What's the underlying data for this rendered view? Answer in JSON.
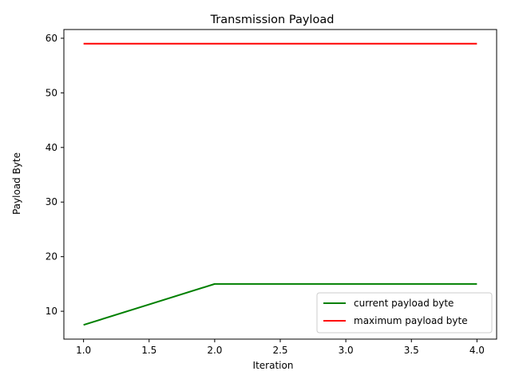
{
  "chart_data": {
    "type": "line",
    "title": "Transmission Payload",
    "xlabel": "Iteration",
    "ylabel": "Payload Byte",
    "xlim": [
      0.85,
      4.15
    ],
    "ylim": [
      4.9,
      61.6
    ],
    "xticks": [
      1.0,
      1.5,
      2.0,
      2.5,
      3.0,
      3.5,
      4.0
    ],
    "xtick_labels": [
      "1.0",
      "1.5",
      "2.0",
      "2.5",
      "3.0",
      "3.5",
      "4.0"
    ],
    "yticks": [
      10,
      20,
      30,
      40,
      50,
      60
    ],
    "ytick_labels": [
      "10",
      "20",
      "30",
      "40",
      "50",
      "60"
    ],
    "grid": false,
    "legend_position": "lower-right",
    "series": [
      {
        "name": "current payload byte",
        "color": "#008000",
        "x": [
          1,
          2,
          3,
          4
        ],
        "y": [
          7.5,
          15,
          15,
          15
        ]
      },
      {
        "name": "maximum payload byte",
        "color": "#ff0000",
        "x": [
          1,
          2,
          3,
          4
        ],
        "y": [
          59,
          59,
          59,
          59
        ]
      }
    ]
  }
}
